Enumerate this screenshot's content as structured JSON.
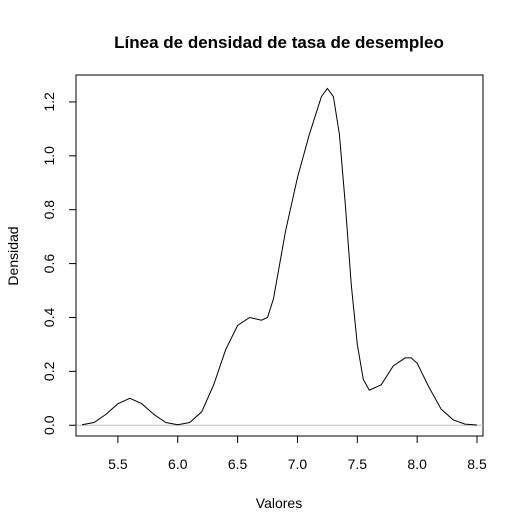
{
  "chart_data": {
    "type": "line",
    "title": "Línea de densidad de tasa de desempleo",
    "xlabel": "Valores",
    "ylabel": "Densidad",
    "xlim": [
      5.15,
      8.55
    ],
    "ylim": [
      -0.04,
      1.3
    ],
    "x_ticks": [
      "5.5",
      "6.0",
      "6.5",
      "7.0",
      "7.5",
      "8.0",
      "8.5"
    ],
    "y_ticks": [
      "0.0",
      "0.2",
      "0.4",
      "0.6",
      "0.8",
      "1.0",
      "1.2"
    ],
    "baseline": 0,
    "grid": false,
    "series": [
      {
        "x": [
          5.2,
          5.3,
          5.4,
          5.5,
          5.6,
          5.7,
          5.8,
          5.9,
          6.0,
          6.1,
          6.2,
          6.3,
          6.4,
          6.5,
          6.6,
          6.7,
          6.75,
          6.8,
          6.9,
          7.0,
          7.1,
          7.2,
          7.25,
          7.3,
          7.35,
          7.4,
          7.45,
          7.5,
          7.55,
          7.6,
          7.7,
          7.8,
          7.9,
          7.95,
          8.0,
          8.1,
          8.2,
          8.3,
          8.4,
          8.5
        ],
        "y": [
          0.002,
          0.01,
          0.04,
          0.08,
          0.1,
          0.08,
          0.04,
          0.01,
          0.002,
          0.01,
          0.05,
          0.15,
          0.28,
          0.37,
          0.4,
          0.39,
          0.4,
          0.47,
          0.72,
          0.92,
          1.08,
          1.22,
          1.25,
          1.22,
          1.08,
          0.82,
          0.52,
          0.3,
          0.17,
          0.13,
          0.15,
          0.22,
          0.25,
          0.25,
          0.23,
          0.14,
          0.06,
          0.02,
          0.004,
          0.001
        ]
      }
    ]
  }
}
